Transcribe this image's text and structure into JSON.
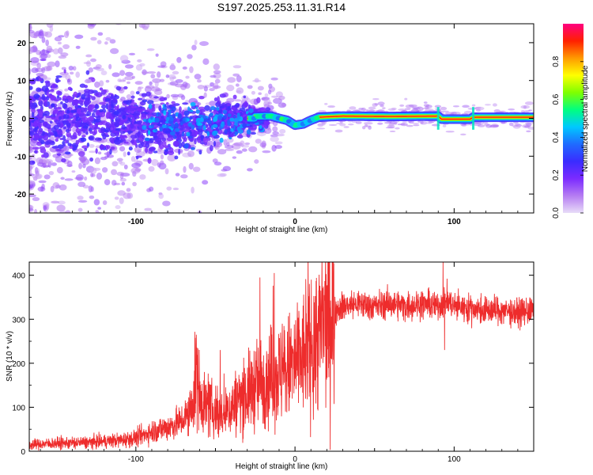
{
  "title": "S197.2025.253.11.31.R14",
  "chart_data": [
    {
      "type": "heatmap",
      "xlabel": "Height of straight line (km)",
      "ylabel": "Frequency (Hz)",
      "xlim": [
        -167,
        150
      ],
      "ylim": [
        -25,
        25
      ],
      "xticks": [
        -100,
        0,
        100
      ],
      "yticks": [
        -20,
        -10,
        0,
        10,
        20
      ],
      "colorbar": {
        "label": "Normalized spectral amplitude",
        "range": [
          0.0,
          1.0
        ],
        "ticks": [
          0.0,
          0.2,
          0.4,
          0.6,
          0.8
        ],
        "tick_labels": [
          "0.0",
          "0.2",
          "0.4",
          "0.6",
          "0.8"
        ],
        "colors": [
          "#e8dcf8",
          "#b57cf2",
          "#7b2bff",
          "#3a2cff",
          "#1f6bff",
          "#00c8ff",
          "#00ff80",
          "#7fff00",
          "#ffff00",
          "#ff9a00",
          "#ff2000",
          "#ff0080"
        ]
      },
      "features": [
        {
          "region": "x < -25 km",
          "description": "diffuse scattered noise, amplitude 0.1–0.35, spread up to ±25 Hz"
        },
        {
          "region": "-25 to 15 km",
          "description": "narrow band near 0 Hz, dips to about -2 Hz near 0 km, amplitude 0.5–0.7"
        },
        {
          "region": "15 to 150 km",
          "description": "strong carrier line near +0.5 Hz, amplitude 0.8–1.0, small step at 90 km"
        }
      ],
      "carrier_trace": {
        "x": [
          -25,
          -15,
          -10,
          -5,
          0,
          5,
          10,
          15,
          30,
          60,
          90,
          92,
          110,
          112,
          150
        ],
        "y": [
          0.5,
          0.6,
          0,
          -0.5,
          -1.8,
          -1.5,
          -0.5,
          0.3,
          0.6,
          0.5,
          0.6,
          -0.2,
          -0.2,
          0.3,
          0.3
        ]
      }
    },
    {
      "type": "line",
      "xlabel": "Height of straight line (km)",
      "ylabel": "SNR (10 * v/v)",
      "xlim": [
        -167,
        150
      ],
      "ylim": [
        0,
        430
      ],
      "xticks": [
        -100,
        0,
        100
      ],
      "yticks": [
        0,
        100,
        200,
        300,
        400
      ],
      "color": "#ee2c2c",
      "series": [
        {
          "name": "SNR",
          "x": [
            -167,
            -150,
            -130,
            -110,
            -100,
            -90,
            -80,
            -70,
            -65,
            -62,
            -60,
            -55,
            -50,
            -45,
            -40,
            -35,
            -30,
            -25,
            -20,
            -15,
            -10,
            -5,
            0,
            5,
            10,
            15,
            20,
            25,
            30,
            40,
            50,
            60,
            70,
            80,
            90,
            95,
            100,
            110,
            120,
            130,
            140,
            150
          ],
          "values": [
            15,
            18,
            20,
            25,
            30,
            45,
            55,
            70,
            90,
            180,
            130,
            100,
            90,
            80,
            100,
            120,
            130,
            150,
            160,
            170,
            175,
            185,
            200,
            215,
            235,
            270,
            300,
            320,
            330,
            335,
            330,
            335,
            330,
            335,
            330,
            345,
            330,
            325,
            320,
            320,
            315,
            320
          ]
        }
      ],
      "spikes": [
        {
          "x": -62,
          "value": 265
        },
        {
          "x": -47,
          "value": 230
        },
        {
          "x": -22,
          "value": 395
        },
        {
          "x": -13,
          "value": 405
        },
        {
          "x": 93,
          "value": 430
        },
        {
          "x": 94,
          "value": 230
        }
      ]
    }
  ]
}
